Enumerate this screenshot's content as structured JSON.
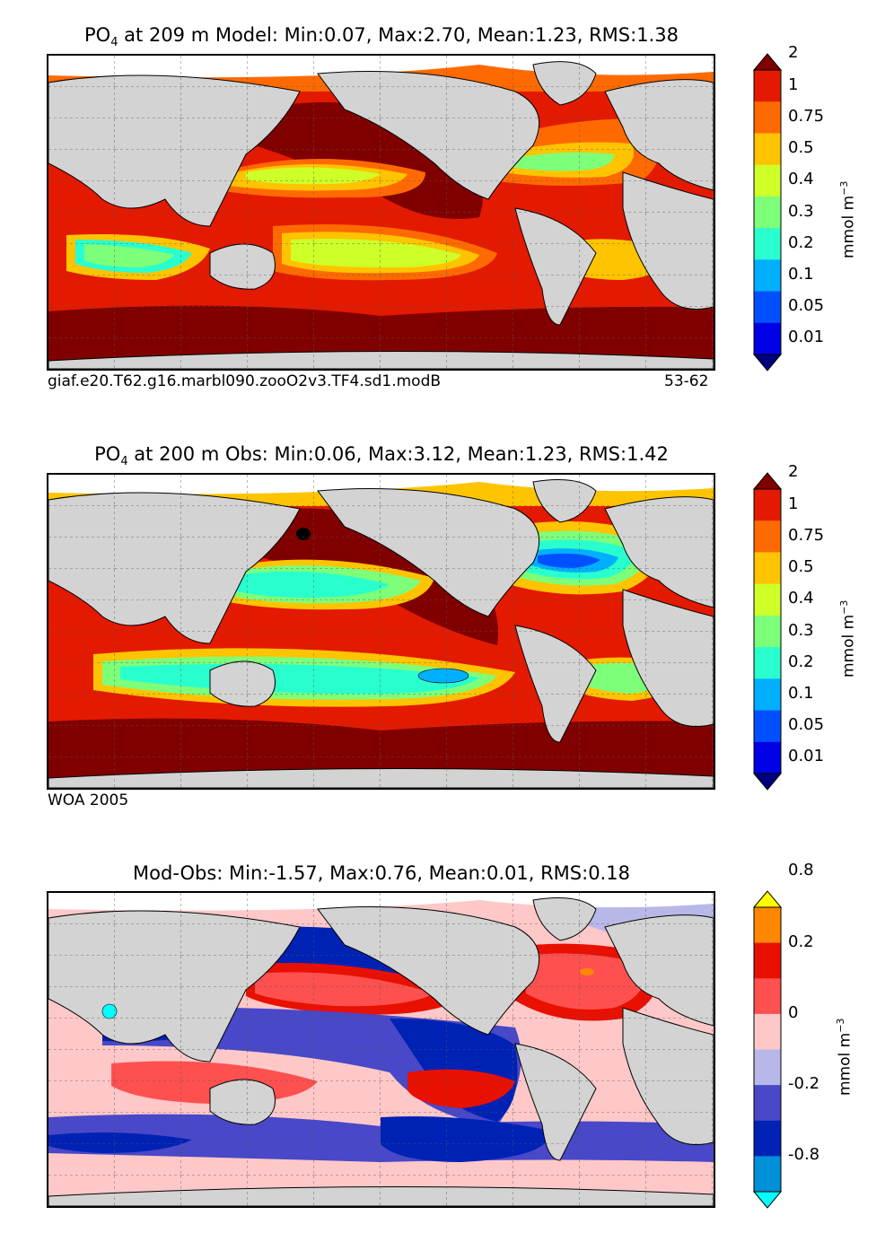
{
  "figure": {
    "panel_model": {
      "title_prefix": "PO",
      "title_sub": "4",
      "title_rest": " at 209 m Model: Min:0.07, Max:2.70, Mean:1.23, RMS:1.38",
      "footer_left": "giaf.e20.T62.g16.marbl090.zooO2v3.TF4.sd1.modB",
      "footer_right": "53-62"
    },
    "panel_obs": {
      "title_prefix": "PO",
      "title_sub": "4",
      "title_rest": " at 200 m Obs: Min:0.06, Max:3.12, Mean:1.23, RMS:1.42",
      "footer_left": "WOA 2005"
    },
    "panel_diff": {
      "title": "Mod-Obs: Min:-1.57, Max:0.76, Mean:0.01, RMS:0.18"
    }
  },
  "chart_data": [
    {
      "type": "heatmap",
      "title": "PO4 at 209 m Model: Min:0.07, Max:2.70, Mean:1.23, RMS:1.38",
      "stats": {
        "min": 0.07,
        "max": 2.7,
        "mean": 1.23,
        "rms": 1.38
      },
      "colorbar": {
        "label": "mmol m-3",
        "unit_base": "mmol m",
        "unit_exp": "−3",
        "levels": [
          "0.01",
          "0.05",
          "0.1",
          "0.2",
          "0.3",
          "0.4",
          "0.5",
          "0.75",
          "1",
          "2"
        ],
        "colors": [
          "#00007f",
          "#0000e6",
          "#0050ff",
          "#00b0ff",
          "#29ffce",
          "#7dff7a",
          "#ceff29",
          "#ffc400",
          "#ff6a00",
          "#e31a00",
          "#800000"
        ]
      }
    },
    {
      "type": "heatmap",
      "title": "PO4 at 200 m Obs: Min:0.06, Max:3.12, Mean:1.23, RMS:1.42",
      "stats": {
        "min": 0.06,
        "max": 3.12,
        "mean": 1.23,
        "rms": 1.42
      },
      "colorbar": {
        "label": "mmol m-3",
        "unit_base": "mmol m",
        "unit_exp": "−3",
        "levels": [
          "0.01",
          "0.05",
          "0.1",
          "0.2",
          "0.3",
          "0.4",
          "0.5",
          "0.75",
          "1",
          "2"
        ],
        "colors": [
          "#00007f",
          "#0000e6",
          "#0050ff",
          "#00b0ff",
          "#29ffce",
          "#7dff7a",
          "#ceff29",
          "#ffc400",
          "#ff6a00",
          "#e31a00",
          "#800000"
        ]
      }
    },
    {
      "type": "heatmap",
      "title": "Mod-Obs: Min:-1.57, Max:0.76, Mean:0.01, RMS:0.18",
      "stats": {
        "min": -1.57,
        "max": 0.76,
        "mean": 0.01,
        "rms": 0.18
      },
      "colorbar": {
        "label": "mmol m-3",
        "unit_base": "mmol m",
        "unit_exp": "−3",
        "levels": [
          "-0.8",
          "-0.2",
          "0",
          "0.2",
          "0.8"
        ],
        "colors": [
          "#00ffff",
          "#0090d8",
          "#0022b4",
          "#4848c8",
          "#b8b8e8",
          "#ffc8c8",
          "#ff5050",
          "#e81000",
          "#ff8800",
          "#ffff00"
        ]
      }
    }
  ]
}
